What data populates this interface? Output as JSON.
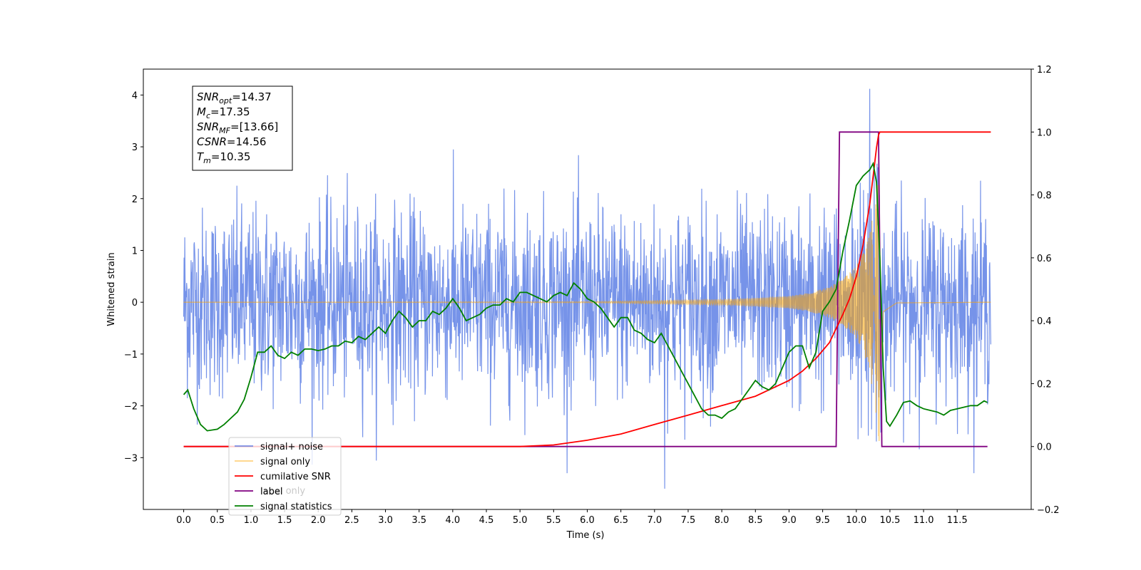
{
  "chart_data": {
    "type": "line",
    "xlabel": "Time (s)",
    "ylabel": "Whitened strain",
    "xlim": [
      -0.6,
      12.6
    ],
    "ylim": [
      -4.0,
      4.5
    ],
    "y2lim": [
      -0.2,
      1.2
    ],
    "x_ticks": [
      0.0,
      0.5,
      1.0,
      1.5,
      2.0,
      2.5,
      3.0,
      3.5,
      4.0,
      4.5,
      5.0,
      5.5,
      6.0,
      6.5,
      7.0,
      7.5,
      8.0,
      8.5,
      9.0,
      9.5,
      10.0,
      10.5,
      11.0,
      11.5
    ],
    "x_tick_labels": [
      "0.0",
      "0.5",
      "1.0",
      "1.5",
      "2.0",
      "2.5",
      "3.0",
      "3.5",
      "4.0",
      "4.5",
      "5.0",
      "5.5",
      "6.0",
      "6.5",
      "7.0",
      "7.5",
      "8.0",
      "8.5",
      "9.0",
      "9.5",
      "10.0",
      "10.5",
      "11.0",
      "11.5"
    ],
    "y_ticks": [
      -3,
      -2,
      -1,
      0,
      1,
      2,
      3,
      4
    ],
    "y_tick_labels": [
      "−3",
      "−2",
      "−1",
      "0",
      "1",
      "2",
      "3",
      "4"
    ],
    "y2_ticks": [
      -0.2,
      0.0,
      0.2,
      0.4,
      0.6,
      0.8,
      1.0,
      1.2
    ],
    "y2_tick_labels": [
      "−0.2",
      "0.0",
      "0.2",
      "0.4",
      "0.6",
      "0.8",
      "1.0",
      "1.2"
    ],
    "info_box": {
      "lines": [
        {
          "sym": "SNR",
          "sub": "opt",
          "val": "=14.37"
        },
        {
          "sym": "M",
          "sub": "c",
          "val": "=17.35"
        },
        {
          "sym": "SNR",
          "sub": "MF",
          "val": "=[13.66]"
        },
        {
          "sym": "CSNR",
          "sub": "",
          "val": "=14.56"
        },
        {
          "sym": "T",
          "sub": "m",
          "val": "=10.35"
        }
      ]
    },
    "legend": {
      "location": "lower-left",
      "entries": [
        {
          "label": "signal+ noise",
          "color": "#4169e1",
          "alpha": 0.7
        },
        {
          "label": "signal only",
          "color": "#ffa500",
          "alpha": 0.5
        },
        {
          "label": "cumilative SNR",
          "color": "#ff0000",
          "alpha": 1.0
        },
        {
          "label": "label",
          "color": "#800080",
          "alpha": 1.0
        },
        {
          "label": "signal statistics",
          "color": "#008000",
          "alpha": 1.0
        }
      ],
      "ghost_text": "label only"
    },
    "series": [
      {
        "name": "signal+ noise",
        "axis": "left",
        "color": "#4169e1",
        "style": "noise-band",
        "t_start": 0.0,
        "t_end": 12.0,
        "typical_amplitude": 1.0,
        "peak_max": 4.12,
        "peak_max_time": 10.2,
        "peak_min": -3.6,
        "peak_min_time": 7.15
      },
      {
        "name": "signal only",
        "axis": "left",
        "color": "#ffa500",
        "style": "chirp",
        "t_start": 0.0,
        "t_end": 12.0,
        "t_merger": 10.35,
        "envelope_t": [
          0.0,
          6.0,
          7.0,
          8.0,
          8.5,
          9.0,
          9.3,
          9.6,
          9.8,
          10.0,
          10.1,
          10.2,
          10.3,
          10.35,
          10.4,
          10.6,
          12.0
        ],
        "envelope_a": [
          0.0,
          0.01,
          0.03,
          0.05,
          0.08,
          0.12,
          0.18,
          0.3,
          0.45,
          0.7,
          0.95,
          1.35,
          2.2,
          2.8,
          0.3,
          0.02,
          0.0
        ]
      },
      {
        "name": "cumilative SNR",
        "axis": "right",
        "color": "#ff0000",
        "x": [
          0.0,
          5.0,
          5.5,
          6.0,
          6.5,
          7.0,
          7.5,
          8.0,
          8.5,
          8.8,
          9.0,
          9.2,
          9.4,
          9.6,
          9.8,
          9.9,
          10.0,
          10.1,
          10.2,
          10.25,
          10.3,
          10.33,
          10.35,
          12.0
        ],
        "values": [
          0.0,
          0.0,
          0.005,
          0.02,
          0.04,
          0.07,
          0.1,
          0.13,
          0.16,
          0.19,
          0.21,
          0.24,
          0.28,
          0.33,
          0.42,
          0.47,
          0.54,
          0.64,
          0.77,
          0.86,
          0.95,
          0.99,
          1.0,
          1.0
        ]
      },
      {
        "name": "label",
        "axis": "right",
        "color": "#800080",
        "x": [
          0.0,
          9.7,
          9.75,
          10.33,
          10.38,
          11.95
        ],
        "values": [
          0.0,
          0.0,
          1.0,
          1.0,
          0.0,
          0.0
        ]
      },
      {
        "name": "signal statistics",
        "axis": "right",
        "color": "#008000",
        "x": [
          0.0,
          0.06,
          0.15,
          0.25,
          0.35,
          0.5,
          0.6,
          0.7,
          0.8,
          0.9,
          1.0,
          1.1,
          1.2,
          1.3,
          1.4,
          1.5,
          1.6,
          1.7,
          1.8,
          1.9,
          2.0,
          2.1,
          2.2,
          2.3,
          2.4,
          2.5,
          2.6,
          2.7,
          2.8,
          2.9,
          3.0,
          3.1,
          3.2,
          3.3,
          3.4,
          3.5,
          3.6,
          3.7,
          3.8,
          3.9,
          4.0,
          4.1,
          4.2,
          4.3,
          4.4,
          4.5,
          4.6,
          4.7,
          4.8,
          4.9,
          5.0,
          5.1,
          5.2,
          5.3,
          5.4,
          5.5,
          5.6,
          5.7,
          5.8,
          5.9,
          6.0,
          6.1,
          6.2,
          6.3,
          6.4,
          6.5,
          6.6,
          6.7,
          6.8,
          6.9,
          7.0,
          7.1,
          7.2,
          7.3,
          7.4,
          7.5,
          7.6,
          7.7,
          7.8,
          7.9,
          8.0,
          8.1,
          8.2,
          8.3,
          8.4,
          8.5,
          8.6,
          8.7,
          8.8,
          8.9,
          9.0,
          9.1,
          9.2,
          9.3,
          9.4,
          9.5,
          9.6,
          9.7,
          9.8,
          9.9,
          10.0,
          10.1,
          10.2,
          10.25,
          10.3,
          10.35,
          10.4,
          10.45,
          10.5,
          10.6,
          10.7,
          10.8,
          10.9,
          11.0,
          11.1,
          11.2,
          11.3,
          11.4,
          11.5,
          11.6,
          11.7,
          11.8,
          11.9,
          11.95
        ],
        "values": [
          0.165,
          0.18,
          0.12,
          0.07,
          0.05,
          0.055,
          0.07,
          0.09,
          0.11,
          0.15,
          0.22,
          0.3,
          0.3,
          0.32,
          0.29,
          0.28,
          0.3,
          0.29,
          0.31,
          0.31,
          0.305,
          0.31,
          0.32,
          0.32,
          0.335,
          0.33,
          0.35,
          0.34,
          0.36,
          0.38,
          0.36,
          0.4,
          0.43,
          0.41,
          0.38,
          0.4,
          0.4,
          0.43,
          0.42,
          0.44,
          0.47,
          0.44,
          0.4,
          0.41,
          0.42,
          0.44,
          0.45,
          0.45,
          0.47,
          0.46,
          0.49,
          0.49,
          0.48,
          0.47,
          0.46,
          0.48,
          0.49,
          0.48,
          0.52,
          0.5,
          0.47,
          0.46,
          0.44,
          0.41,
          0.38,
          0.41,
          0.41,
          0.37,
          0.36,
          0.34,
          0.33,
          0.36,
          0.32,
          0.28,
          0.24,
          0.2,
          0.16,
          0.12,
          0.1,
          0.1,
          0.09,
          0.11,
          0.12,
          0.15,
          0.18,
          0.21,
          0.19,
          0.18,
          0.2,
          0.25,
          0.3,
          0.32,
          0.32,
          0.25,
          0.3,
          0.43,
          0.46,
          0.5,
          0.62,
          0.72,
          0.83,
          0.86,
          0.88,
          0.9,
          0.84,
          0.6,
          0.25,
          0.08,
          0.065,
          0.1,
          0.14,
          0.145,
          0.13,
          0.12,
          0.115,
          0.11,
          0.1,
          0.115,
          0.12,
          0.125,
          0.13,
          0.13,
          0.145,
          0.14
        ]
      }
    ]
  }
}
